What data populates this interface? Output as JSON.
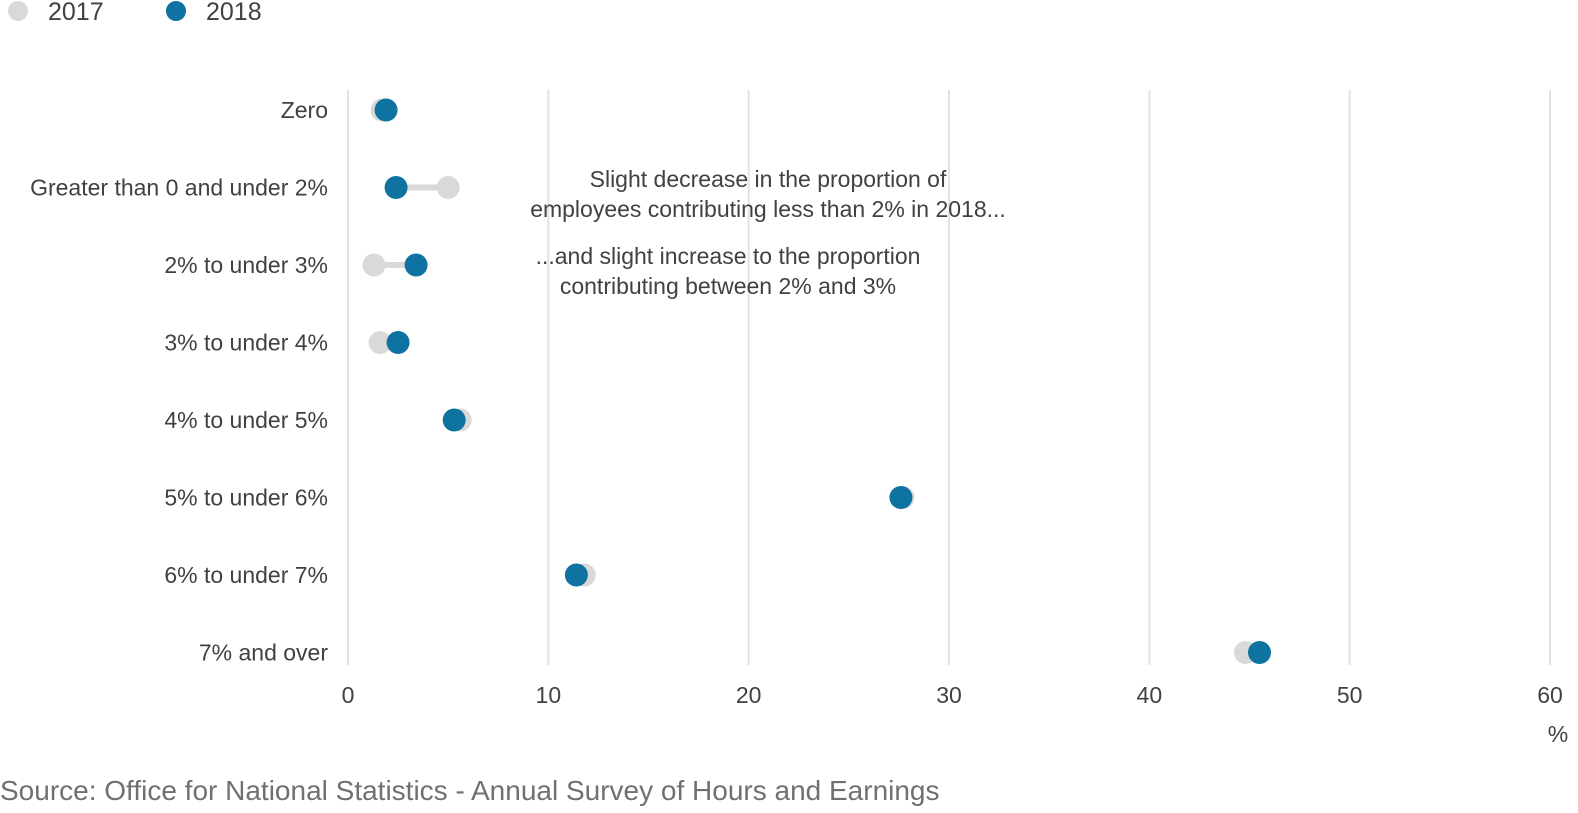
{
  "chart_data": {
    "type": "dot-plot",
    "categories": [
      "Zero",
      "Greater than 0 and under 2%",
      "2% to under 3%",
      "3% to under 4%",
      "4% to under 5%",
      "5% to under 6%",
      "6% to under 7%",
      "7% and over"
    ],
    "series": [
      {
        "name": "2017",
        "color": "#d9d9d9",
        "values": [
          1.7,
          5.0,
          1.3,
          1.6,
          5.6,
          27.7,
          11.8,
          44.8
        ]
      },
      {
        "name": "2018",
        "color": "#0f73a1",
        "values": [
          1.9,
          2.4,
          3.4,
          2.5,
          5.3,
          27.6,
          11.4,
          45.5
        ]
      }
    ],
    "xlim": [
      0,
      60
    ],
    "xticks": [
      0,
      10,
      20,
      30,
      40,
      50,
      60
    ],
    "xunit": "%",
    "grid": true,
    "legend_position": "top-left",
    "annotations": [
      {
        "lines": [
          "Slight decrease in the proportion of",
          "employees contributing less than 2% in 2018..."
        ]
      },
      {
        "lines": [
          "...and slight increase to the proportion",
          "contributing between 2% and 3%"
        ]
      }
    ],
    "source": "Source: Office for National Statistics - Annual Survey of Hours and Earnings"
  }
}
